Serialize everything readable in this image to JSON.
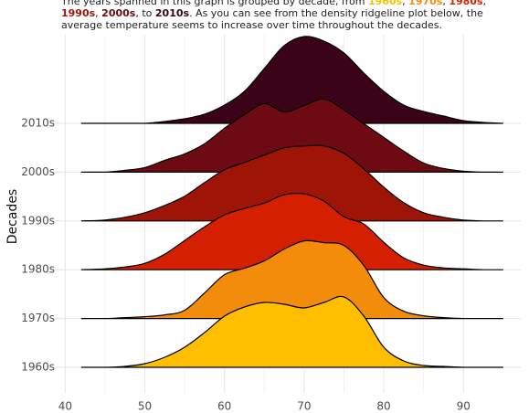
{
  "chart_data": {
    "type": "ridgeline",
    "subtitle_parts": [
      {
        "text": "The years spanned in this graph is grouped by decade, from ",
        "color": "#222222"
      },
      {
        "text": "1960s",
        "color": "#f5c400"
      },
      {
        "text": ", ",
        "color": "#222222"
      },
      {
        "text": "1970s",
        "color": "#f28c0f"
      },
      {
        "text": ", ",
        "color": "#222222"
      },
      {
        "text": "1980s",
        "color": "#d42000"
      },
      {
        "text": ", ",
        "color": "#222222"
      },
      {
        "text": "1990s",
        "color": "#a01508"
      },
      {
        "text": ", ",
        "color": "#222222"
      },
      {
        "text": "2000s",
        "color": "#6e0a12"
      },
      {
        "text": ", to ",
        "color": "#222222"
      },
      {
        "text": "2010s",
        "color": "#3a0318"
      },
      {
        "text": ". As you can see from the density ridgeline plot below, the average temperature seems to increase over time throughout the decades.",
        "color": "#222222"
      }
    ],
    "y_label": "Decades",
    "x": [
      42,
      45,
      47.5,
      50,
      52.5,
      55,
      57.5,
      60,
      62.5,
      65,
      67.5,
      70,
      72.5,
      75,
      77.5,
      80,
      82.5,
      85,
      87.5,
      90,
      92.5,
      95
    ],
    "series": [
      {
        "name": "1960s",
        "color": "#ffbf00",
        "values": [
          0,
          0,
          0.001,
          0.004,
          0.011,
          0.022,
          0.038,
          0.056,
          0.066,
          0.071,
          0.069,
          0.065,
          0.071,
          0.077,
          0.056,
          0.022,
          0.007,
          0.002,
          0.001,
          0,
          0,
          0
        ]
      },
      {
        "name": "1970s",
        "color": "#f28c0a",
        "values": [
          0,
          0,
          0.001,
          0.002,
          0.004,
          0.009,
          0.028,
          0.048,
          0.055,
          0.063,
          0.076,
          0.085,
          0.083,
          0.08,
          0.058,
          0.023,
          0.008,
          0.003,
          0.001,
          0,
          0,
          0
        ]
      },
      {
        "name": "1980s",
        "color": "#d42000",
        "values": [
          0,
          0.001,
          0.003,
          0.007,
          0.017,
          0.032,
          0.047,
          0.06,
          0.067,
          0.073,
          0.082,
          0.083,
          0.075,
          0.058,
          0.05,
          0.03,
          0.013,
          0.005,
          0.002,
          0.001,
          0,
          0
        ]
      },
      {
        "name": "1990s",
        "color": "#9e1508",
        "values": [
          0,
          0.001,
          0.004,
          0.009,
          0.017,
          0.027,
          0.042,
          0.056,
          0.064,
          0.072,
          0.08,
          0.082,
          0.082,
          0.074,
          0.057,
          0.037,
          0.02,
          0.009,
          0.004,
          0.001,
          0,
          0
        ]
      },
      {
        "name": "2000s",
        "color": "#6e0a14",
        "values": [
          0,
          0,
          0.002,
          0.005,
          0.013,
          0.02,
          0.031,
          0.048,
          0.063,
          0.075,
          0.066,
          0.073,
          0.08,
          0.068,
          0.053,
          0.038,
          0.023,
          0.01,
          0.004,
          0.001,
          0,
          0
        ]
      },
      {
        "name": "2010s",
        "color": "#3a0318",
        "values": [
          0,
          0,
          0,
          0,
          0.002,
          0.005,
          0.01,
          0.02,
          0.035,
          0.06,
          0.085,
          0.095,
          0.09,
          0.077,
          0.055,
          0.035,
          0.02,
          0.013,
          0.008,
          0.003,
          0.001,
          0
        ]
      }
    ],
    "xlim": [
      38.7,
      97.2
    ],
    "xticks": [
      40,
      50,
      60,
      70,
      80,
      90
    ],
    "grid": true
  }
}
